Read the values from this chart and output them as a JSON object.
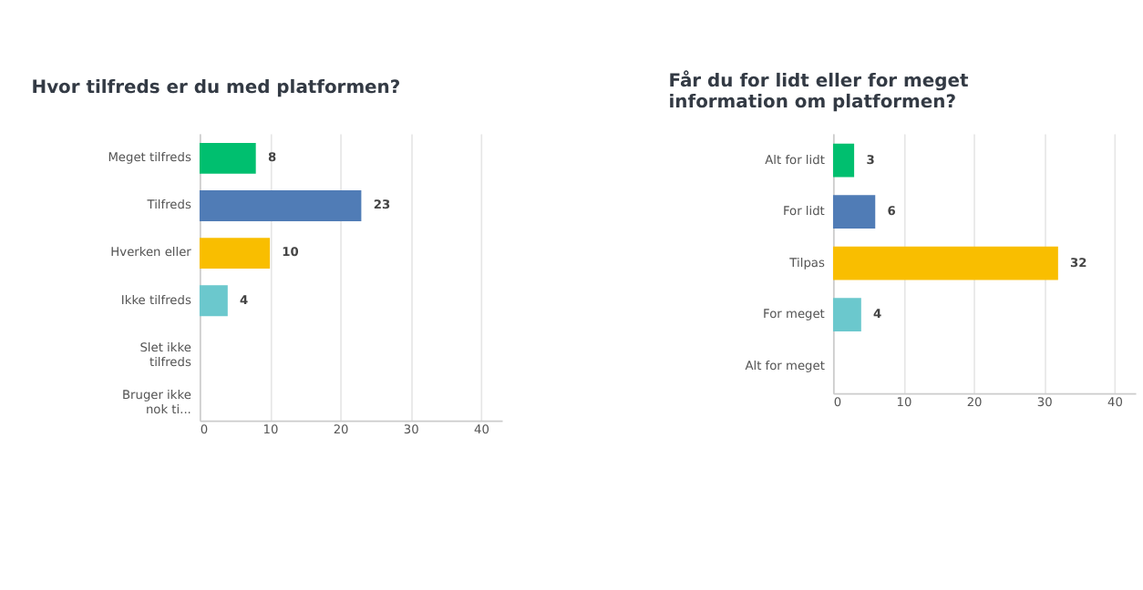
{
  "chart_data": [
    {
      "type": "bar",
      "orientation": "horizontal",
      "title": "Hvor tilfreds er du med platformen?",
      "categories": [
        "Meget tilfreds",
        "Tilfreds",
        "Hverken eller",
        "Ikke tilfreds",
        "Slet ikke tilfreds",
        "Bruger ikke nok ti..."
      ],
      "values": [
        8,
        23,
        10,
        4,
        null,
        null
      ],
      "value_labels": [
        "8",
        "23",
        "10",
        "4",
        null,
        null
      ],
      "colors": [
        "#00bf6f",
        "#507cb6",
        "#f9be00",
        "#6bc8cd",
        null,
        null
      ],
      "xlim": [
        0,
        43
      ],
      "xticks": [
        0,
        10,
        20,
        30,
        40
      ],
      "grid": "x"
    },
    {
      "type": "bar",
      "orientation": "horizontal",
      "title": "Får du for lidt eller for meget information om platformen?",
      "categories": [
        "Alt for lidt",
        "For lidt",
        "Tilpas",
        "For meget",
        "Alt for meget"
      ],
      "values": [
        3,
        6,
        32,
        4,
        null
      ],
      "value_labels": [
        "3",
        "6",
        "32",
        "4",
        null
      ],
      "colors": [
        "#00bf6f",
        "#507cb6",
        "#f9be00",
        "#6bc8cd",
        null
      ],
      "xlim": [
        0,
        43
      ],
      "xticks": [
        0,
        10,
        20,
        30,
        40
      ],
      "grid": "x"
    }
  ]
}
